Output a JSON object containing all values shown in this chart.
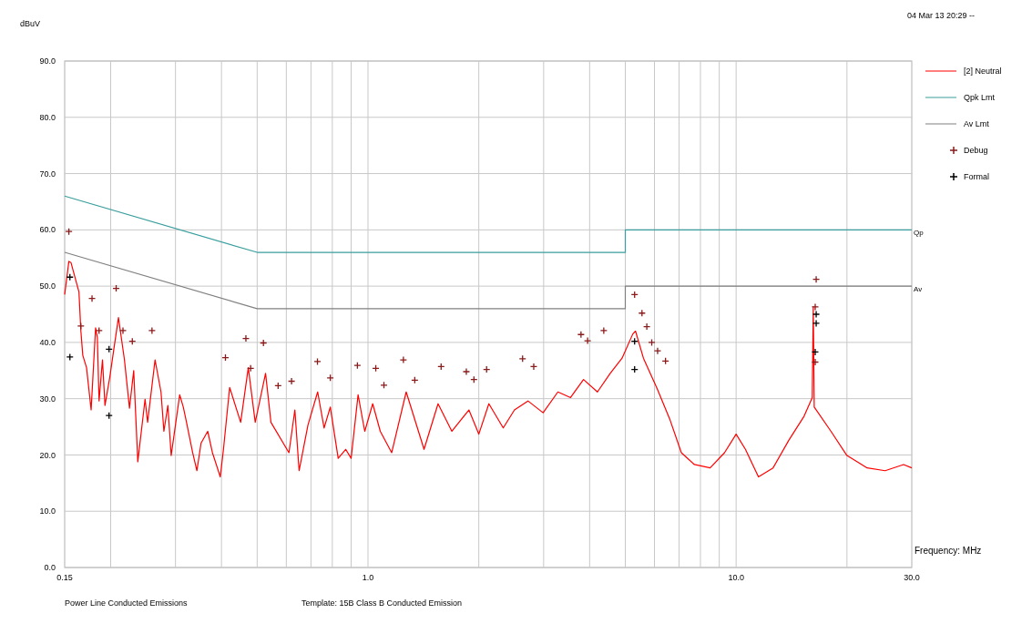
{
  "chart_data": {
    "type": "line",
    "xlabel": "Frequency: MHz",
    "ylabel": "dBuV",
    "log": "x",
    "grid": true,
    "legend": "right",
    "xlim": [
      0.15,
      30
    ],
    "xticks": [
      {
        "value": 0.15,
        "label": "0.15"
      },
      {
        "value": 1,
        "label": "1.0"
      },
      {
        "value": 10,
        "label": "10.0"
      },
      {
        "value": 30,
        "label": "30.0"
      }
    ],
    "ylim": [
      0,
      90
    ],
    "yticks": [
      {
        "value": 0,
        "label": "0.0"
      },
      {
        "value": 10,
        "label": "10.0"
      },
      {
        "value": 20,
        "label": "20.0"
      },
      {
        "value": 30,
        "label": "30.0"
      },
      {
        "value": 40,
        "label": "40.0"
      },
      {
        "value": 50,
        "label": "50.0"
      },
      {
        "value": 60,
        "label": "60.0"
      },
      {
        "value": 70,
        "label": "70.0"
      },
      {
        "value": 80,
        "label": "80.0"
      },
      {
        "value": 90,
        "label": "90.0"
      }
    ],
    "annotations": [
      "04 Mar 13 20:29 --",
      {
        "text": "Qp",
        "x": 30,
        "y": 60
      },
      {
        "text": "Av",
        "x": 30,
        "y": 50
      },
      "Power Line Conducted Emissions",
      "Template: 15B Class B Conducted Emission"
    ],
    "series": [
      {
        "name": "[2] Neutral",
        "color": "#ff0000",
        "x": [
          0.15,
          0.154,
          0.156,
          0.164,
          0.166,
          0.168,
          0.172,
          0.177,
          0.182,
          0.184,
          0.186,
          0.19,
          0.193,
          0.199,
          0.204,
          0.21,
          0.218,
          0.225,
          0.231,
          0.237,
          0.248,
          0.252,
          0.264,
          0.274,
          0.279,
          0.286,
          0.292,
          0.308,
          0.315,
          0.32,
          0.334,
          0.343,
          0.352,
          0.367,
          0.378,
          0.397,
          0.405,
          0.421,
          0.451,
          0.473,
          0.494,
          0.527,
          0.545,
          0.61,
          0.633,
          0.65,
          0.687,
          0.73,
          0.76,
          0.79,
          0.83,
          0.87,
          0.9,
          0.94,
          0.98,
          1.03,
          1.08,
          1.16,
          1.27,
          1.42,
          1.55,
          1.69,
          1.88,
          2.0,
          2.13,
          2.33,
          2.5,
          2.72,
          2.99,
          3.28,
          3.55,
          3.85,
          4.2,
          4.55,
          4.9,
          5.24,
          5.33,
          5.6,
          6.1,
          6.6,
          7.1,
          7.7,
          8.5,
          9.3,
          10.0,
          10.6,
          11.5,
          12.6,
          13.9,
          15.3,
          16.1,
          16.2,
          16.3,
          18.1,
          20.0,
          22.7,
          25.4,
          28.5,
          30
        ],
        "values": [
          48.5,
          54.4,
          54.2,
          49.0,
          42.0,
          37.7,
          35.5,
          28.0,
          42.6,
          40.9,
          29.6,
          36.9,
          28.8,
          33.9,
          38.8,
          44.4,
          36.9,
          28.3,
          35.0,
          18.8,
          29.9,
          25.8,
          36.9,
          31.2,
          24.2,
          28.8,
          19.9,
          30.7,
          28.5,
          26.4,
          20.4,
          17.2,
          22.1,
          24.2,
          20.4,
          16.1,
          21.0,
          32.0,
          25.8,
          35.5,
          25.8,
          34.5,
          25.8,
          20.4,
          28.0,
          17.2,
          25.3,
          31.2,
          24.8,
          28.5,
          19.4,
          21.0,
          19.4,
          30.7,
          24.2,
          29.1,
          24.2,
          20.4,
          31.2,
          21.0,
          29.1,
          24.2,
          28.0,
          23.7,
          29.1,
          24.8,
          28.0,
          29.6,
          27.5,
          31.2,
          30.2,
          33.4,
          31.2,
          34.5,
          37.2,
          41.5,
          42.0,
          37.2,
          31.8,
          26.4,
          20.4,
          18.3,
          17.7,
          20.4,
          23.7,
          21.0,
          16.1,
          17.7,
          22.6,
          26.9,
          30.2,
          46.3,
          28.5,
          24.2,
          19.9,
          17.7,
          17.2,
          18.3,
          17.7
        ]
      },
      {
        "name": "Qpk Lmt",
        "color": "#3a9e9e",
        "x": [
          0.15,
          0.5,
          5,
          5,
          30
        ],
        "values": [
          66,
          56,
          56,
          60,
          60
        ]
      },
      {
        "name": "Av Lmt",
        "color": "#808080",
        "x": [
          0.15,
          0.5,
          5,
          5,
          30
        ],
        "values": [
          56,
          46,
          46,
          50,
          50
        ]
      },
      {
        "name": "Debug",
        "type": "scatter",
        "marker": "cross",
        "color": "#8b1a1a",
        "x": [
          0.154,
          0.178,
          0.207,
          0.166,
          0.186,
          0.216,
          0.229,
          0.259,
          0.41,
          0.466,
          0.52,
          0.48,
          0.57,
          0.62,
          0.729,
          0.79,
          0.936,
          1.05,
          1.105,
          1.248,
          1.34,
          1.58,
          1.85,
          1.94,
          2.1,
          2.63,
          2.82,
          3.79,
          3.95,
          4.37,
          5.3,
          5.55,
          5.72,
          5.9,
          6.12,
          6.43,
          16.5,
          16.4,
          16.4
        ],
        "values": [
          59.7,
          47.8,
          49.6,
          42.9,
          42.1,
          42.1,
          40.2,
          42.1,
          37.3,
          40.7,
          39.9,
          35.4,
          32.3,
          33.1,
          36.6,
          33.7,
          35.9,
          35.4,
          32.4,
          36.9,
          33.3,
          35.7,
          34.8,
          33.4,
          35.2,
          37.1,
          35.7,
          41.4,
          40.3,
          42.1,
          48.5,
          45.2,
          42.8,
          40.0,
          38.5,
          36.7,
          51.2,
          46.3,
          36.5
        ]
      },
      {
        "name": "Formal",
        "type": "scatter",
        "marker": "cross",
        "color": "#000000",
        "x": [
          0.155,
          0.155,
          0.198,
          0.198,
          5.3,
          5.3,
          16.5,
          16.5,
          16.4
        ],
        "values": [
          51.6,
          37.4,
          38.8,
          27.0,
          40.2,
          35.2,
          45.0,
          43.4,
          38.3
        ]
      }
    ]
  }
}
